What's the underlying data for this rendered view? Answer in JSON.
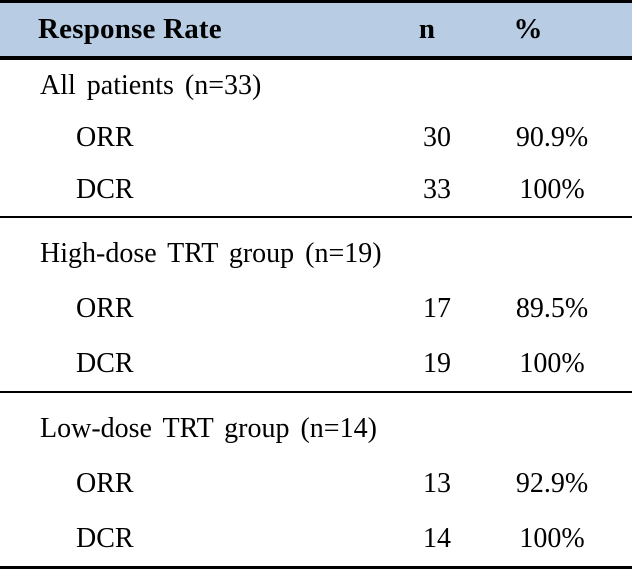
{
  "header": {
    "col_label": "Response Rate",
    "col_n": "n",
    "col_pct": "%"
  },
  "sections": [
    {
      "title": "All patients (n=33)",
      "rows": [
        {
          "label": "ORR",
          "n": "30",
          "pct": "90.9%"
        },
        {
          "label": "DCR",
          "n": "33",
          "pct": "100%"
        }
      ]
    },
    {
      "title": "High-dose TRT group (n=19)",
      "rows": [
        {
          "label": "ORR",
          "n": "17",
          "pct": "89.5%"
        },
        {
          "label": "DCR",
          "n": "19",
          "pct": "100%"
        }
      ]
    },
    {
      "title": "Low-dose TRT group (n=14)",
      "rows": [
        {
          "label": "ORR",
          "n": "13",
          "pct": "92.9%"
        },
        {
          "label": "DCR",
          "n": "14",
          "pct": "100%"
        }
      ]
    }
  ],
  "colors": {
    "header_bg": "#b8cce4",
    "border": "#000000",
    "text": "#000000"
  }
}
